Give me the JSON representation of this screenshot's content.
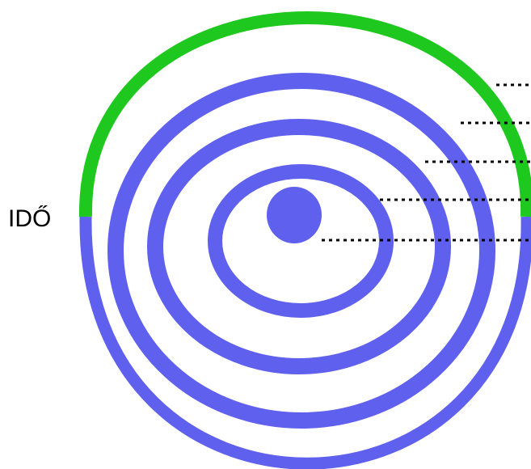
{
  "label": "IDŐ"
}
